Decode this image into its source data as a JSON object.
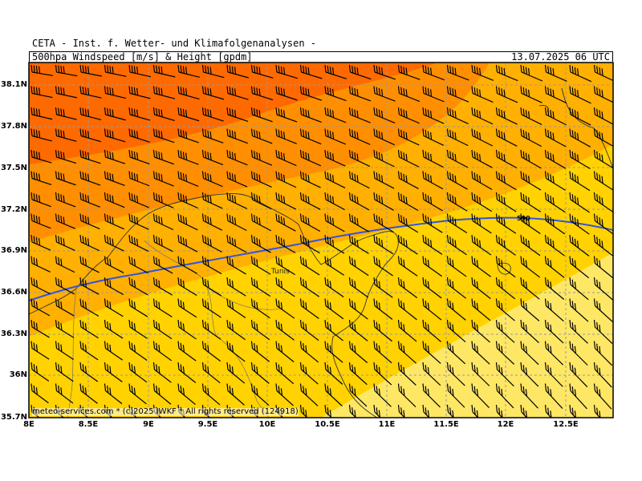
{
  "header": {
    "institute": "CETA - Inst. f. Wetter- und Klimafolgenanalysen -",
    "title": "500hpa_Windspeed_[m/s]_&_Height_[gpdm]",
    "datetime": "13.07.2025 06 UTC"
  },
  "map": {
    "lon_range": [
      8.0,
      12.9
    ],
    "lat_range": [
      35.7,
      38.3
    ],
    "lat_ticks": [
      "38.1N",
      "37.8N",
      "37.5N",
      "37.2N",
      "36.9N",
      "36.6N",
      "36.3N",
      "36N",
      "35.7N"
    ],
    "lon_ticks": [
      "8E",
      "8.5E",
      "9E",
      "9.5E",
      "10E",
      "10.5E",
      "11E",
      "11.5E",
      "12E",
      "12.5E"
    ],
    "contour_label": "590",
    "city_label": "Tunis",
    "copyright": "meteo-services.com * (c)2025 IWKF * All rights reserved (124918)",
    "colors": {
      "band_darkest": "#ff6a00",
      "band_dark": "#ff8f00",
      "band_mid": "#ffb000",
      "band_yellow": "#ffd200",
      "band_light": "#ffe766",
      "contour": "#3355dd"
    }
  }
}
